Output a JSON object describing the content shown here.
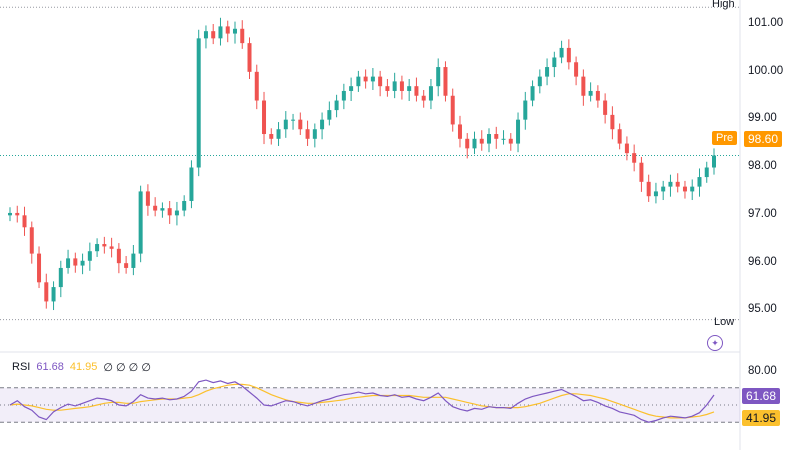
{
  "chart_data": {
    "type": "candlestick",
    "y_ticks": [
      "101.00",
      "100.00",
      "99.00",
      "98.00",
      "97.00",
      "96.00",
      "95.00"
    ],
    "y_tick_values": [
      101,
      100,
      99,
      98,
      97,
      96,
      95
    ],
    "ylim": [
      94.7,
      101.45
    ],
    "high_label": "High",
    "low_label": "Low",
    "high_value": 101.35,
    "low_value": 94.82,
    "pre_label": "Pre",
    "pre_value": "98.60",
    "last_price": 98.25,
    "colors": {
      "up": "#26a69a",
      "down": "#ef5350",
      "pre": "#ff9800",
      "rsi": "#7e57c2",
      "rsi_ma": "#fbc02d"
    },
    "closes": [
      97.05,
      97.0,
      96.75,
      96.2,
      95.6,
      95.2,
      95.5,
      95.9,
      96.1,
      95.95,
      96.05,
      96.25,
      96.4,
      96.35,
      96.3,
      96.0,
      95.9,
      96.2,
      97.5,
      97.2,
      97.1,
      97.15,
      97.0,
      97.1,
      97.3,
      98.0,
      100.7,
      100.85,
      100.7,
      100.95,
      100.8,
      100.9,
      100.6,
      100.0,
      99.4,
      98.7,
      98.6,
      98.8,
      99.0,
      99.0,
      98.8,
      98.6,
      98.8,
      99.0,
      99.2,
      99.4,
      99.6,
      99.7,
      99.9,
      99.8,
      99.9,
      99.7,
      99.6,
      99.8,
      99.6,
      99.7,
      99.5,
      99.4,
      99.7,
      100.1,
      99.5,
      98.9,
      98.6,
      98.4,
      98.6,
      98.5,
      98.7,
      98.6,
      98.6,
      98.5,
      99.0,
      99.4,
      99.7,
      99.9,
      100.1,
      100.3,
      100.5,
      100.2,
      99.9,
      99.5,
      99.6,
      99.4,
      99.1,
      98.8,
      98.5,
      98.3,
      98.1,
      97.7,
      97.4,
      97.5,
      97.6,
      97.7,
      97.6,
      97.5,
      97.6,
      97.8,
      98.0,
      98.25
    ],
    "rsi": {
      "label": "RSI",
      "value": "61.68",
      "ma_value": "41.95",
      "params": "∅ ∅ ∅ ∅",
      "upper_band": "80.00",
      "axis_value": 80,
      "series": [
        50,
        55,
        48,
        44,
        36,
        33,
        42,
        47,
        51,
        49,
        52,
        55,
        58,
        57,
        55,
        50,
        49,
        54,
        62,
        58,
        57,
        58,
        56,
        57,
        60,
        66,
        77,
        79,
        76,
        78,
        75,
        77,
        72,
        65,
        58,
        50,
        49,
        52,
        55,
        54,
        51,
        49,
        52,
        55,
        57,
        60,
        62,
        63,
        65,
        63,
        64,
        61,
        60,
        62,
        59,
        60,
        57,
        55,
        59,
        64,
        55,
        48,
        45,
        43,
        46,
        45,
        48,
        47,
        47,
        46,
        52,
        57,
        60,
        62,
        64,
        66,
        68,
        64,
        60,
        55,
        56,
        53,
        49,
        46,
        42,
        40,
        38,
        33,
        30,
        32,
        35,
        37,
        36,
        35,
        37,
        41,
        50,
        61.68
      ],
      "ma_series": [
        50,
        51,
        50,
        49,
        47,
        45,
        44,
        44,
        45,
        46,
        47,
        48,
        50,
        52,
        53,
        53,
        52,
        52,
        54,
        55,
        56,
        57,
        57,
        57,
        58,
        59,
        62,
        66,
        69,
        71,
        73,
        74,
        74,
        73,
        70,
        66,
        62,
        59,
        56,
        54,
        53,
        52,
        52,
        53,
        54,
        55,
        56,
        58,
        59,
        60,
        61,
        61,
        61,
        61,
        61,
        61,
        60,
        59,
        59,
        59,
        59,
        57,
        55,
        53,
        51,
        49,
        48,
        47,
        47,
        47,
        47,
        48,
        50,
        52,
        55,
        58,
        61,
        63,
        63,
        62,
        61,
        59,
        57,
        54,
        51,
        48,
        45,
        42,
        39,
        37,
        36,
        35,
        35,
        35,
        36,
        37,
        39,
        41.95
      ]
    }
  }
}
